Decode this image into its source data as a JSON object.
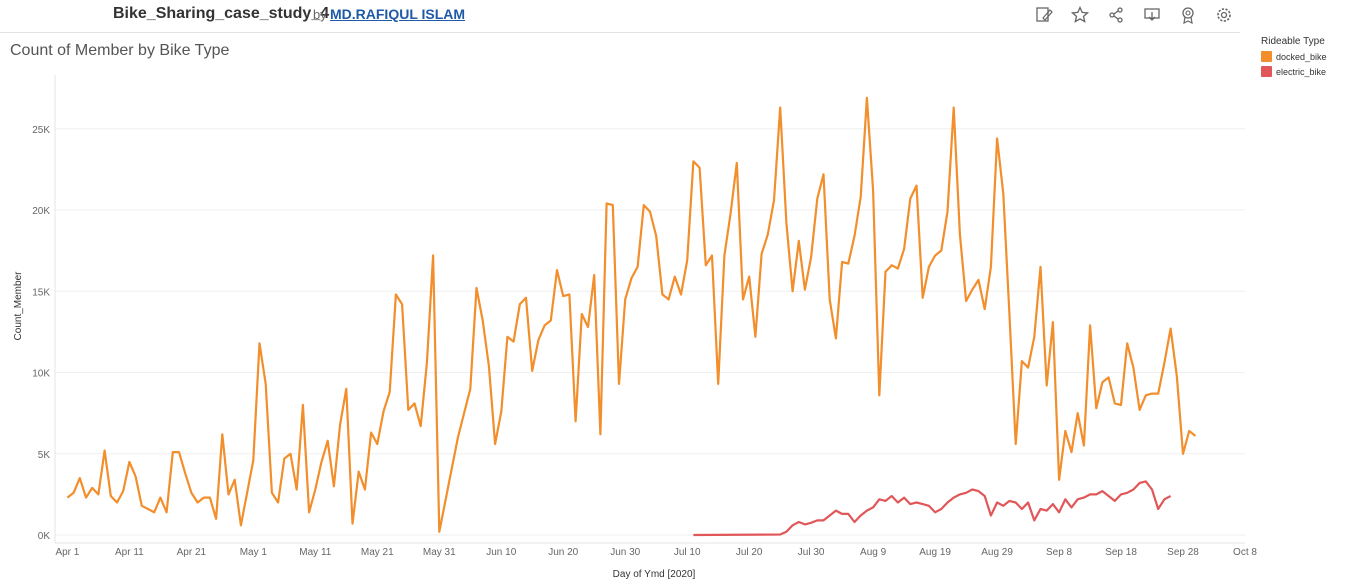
{
  "header": {
    "workbook_title": "Bike_Sharing_case_study_4",
    "by_label": "by",
    "author": "MD.RAFIQUL ISLAM",
    "toolbar_icons": [
      "edit-icon",
      "star-icon",
      "share-icon",
      "download-icon",
      "badge-icon",
      "settings-icon"
    ]
  },
  "legend": {
    "title": "Rideable Type",
    "items": [
      {
        "label": "docked_bike",
        "color": "#f28e2b"
      },
      {
        "label": "electric_bike",
        "color": "#e15759"
      }
    ]
  },
  "chart_data": {
    "type": "line",
    "title": "Count of Member by Bike Type",
    "xlabel": "Day of Ymd [2020]",
    "ylabel": "Count_Member",
    "x_start": "2020-04-01",
    "x_ticks": [
      "Apr 1",
      "Apr 11",
      "Apr 21",
      "May 1",
      "May 11",
      "May 21",
      "May 31",
      "Jun 10",
      "Jun 20",
      "Jun 30",
      "Jul 10",
      "Jul 20",
      "Jul 30",
      "Aug 9",
      "Aug 19",
      "Aug 29",
      "Sep 8",
      "Sep 18",
      "Sep 28",
      "Oct 8"
    ],
    "y_ticks": [
      "0K",
      "5K",
      "10K",
      "15K",
      "20K",
      "25K"
    ],
    "y_tick_values": [
      0,
      5000,
      10000,
      15000,
      20000,
      25000
    ],
    "ylim": [
      0,
      28000
    ],
    "xlim_days": [
      -2,
      190
    ],
    "grid": true,
    "legend_position": "top-right",
    "series": [
      {
        "name": "docked_bike",
        "color": "#f28e2b",
        "points": [
          [
            0,
            2300
          ],
          [
            1,
            2600
          ],
          [
            2,
            3500
          ],
          [
            3,
            2300
          ],
          [
            4,
            2900
          ],
          [
            5,
            2500
          ],
          [
            6,
            5200
          ],
          [
            7,
            2400
          ],
          [
            8,
            2000
          ],
          [
            9,
            2700
          ],
          [
            10,
            4500
          ],
          [
            11,
            3600
          ],
          [
            12,
            1800
          ],
          [
            13,
            1600
          ],
          [
            14,
            1400
          ],
          [
            15,
            2300
          ],
          [
            16,
            1400
          ],
          [
            17,
            5100
          ],
          [
            18,
            5100
          ],
          [
            19,
            3800
          ],
          [
            20,
            2600
          ],
          [
            21,
            2000
          ],
          [
            22,
            2300
          ],
          [
            23,
            2300
          ],
          [
            24,
            1000
          ],
          [
            25,
            6200
          ],
          [
            26,
            2500
          ],
          [
            27,
            3400
          ],
          [
            28,
            600
          ],
          [
            30,
            4600
          ],
          [
            31,
            11800
          ],
          [
            32,
            9300
          ],
          [
            33,
            2600
          ],
          [
            34,
            2000
          ],
          [
            35,
            4700
          ],
          [
            36,
            5000
          ],
          [
            37,
            2800
          ],
          [
            38,
            8000
          ],
          [
            39,
            1400
          ],
          [
            40,
            2800
          ],
          [
            41,
            4500
          ],
          [
            42,
            5800
          ],
          [
            43,
            3000
          ],
          [
            44,
            6800
          ],
          [
            45,
            9000
          ],
          [
            46,
            700
          ],
          [
            47,
            3900
          ],
          [
            48,
            2800
          ],
          [
            49,
            6300
          ],
          [
            50,
            5600
          ],
          [
            51,
            7600
          ],
          [
            52,
            8800
          ],
          [
            53,
            14800
          ],
          [
            54,
            14200
          ],
          [
            55,
            7700
          ],
          [
            56,
            8100
          ],
          [
            57,
            6700
          ],
          [
            58,
            10600
          ],
          [
            59,
            17200
          ],
          [
            60,
            200
          ],
          [
            63,
            6000
          ],
          [
            64,
            7500
          ],
          [
            65,
            9000
          ],
          [
            66,
            15200
          ],
          [
            67,
            13200
          ],
          [
            68,
            10400
          ],
          [
            69,
            5600
          ],
          [
            70,
            7600
          ],
          [
            71,
            12200
          ],
          [
            72,
            11900
          ],
          [
            73,
            14200
          ],
          [
            74,
            14600
          ],
          [
            75,
            10100
          ],
          [
            76,
            12000
          ],
          [
            77,
            12900
          ],
          [
            78,
            13200
          ],
          [
            79,
            16300
          ],
          [
            80,
            14700
          ],
          [
            81,
            14800
          ],
          [
            82,
            7000
          ],
          [
            83,
            13600
          ],
          [
            84,
            12800
          ],
          [
            85,
            16000
          ],
          [
            86,
            6200
          ],
          [
            87,
            20400
          ],
          [
            88,
            20300
          ],
          [
            89,
            9300
          ],
          [
            90,
            14500
          ],
          [
            91,
            15800
          ],
          [
            92,
            16500
          ],
          [
            93,
            20300
          ],
          [
            94,
            19900
          ],
          [
            95,
            18400
          ],
          [
            96,
            14800
          ],
          [
            97,
            14500
          ],
          [
            98,
            15900
          ],
          [
            99,
            14800
          ],
          [
            100,
            16900
          ],
          [
            101,
            23000
          ],
          [
            102,
            22600
          ],
          [
            103,
            16600
          ],
          [
            104,
            17200
          ],
          [
            105,
            9300
          ],
          [
            106,
            17200
          ],
          [
            107,
            19800
          ],
          [
            108,
            22900
          ],
          [
            109,
            14500
          ],
          [
            110,
            15900
          ],
          [
            111,
            12200
          ],
          [
            112,
            17300
          ],
          [
            113,
            18500
          ],
          [
            114,
            20600
          ],
          [
            115,
            26300
          ],
          [
            116,
            19200
          ],
          [
            117,
            15000
          ],
          [
            118,
            18100
          ],
          [
            119,
            15100
          ],
          [
            120,
            17100
          ],
          [
            121,
            20700
          ],
          [
            122,
            22200
          ],
          [
            123,
            14500
          ],
          [
            124,
            12100
          ],
          [
            125,
            16800
          ],
          [
            126,
            16700
          ],
          [
            127,
            18400
          ],
          [
            128,
            20800
          ],
          [
            129,
            26900
          ],
          [
            130,
            21200
          ],
          [
            131,
            8600
          ],
          [
            132,
            16200
          ],
          [
            133,
            16600
          ],
          [
            134,
            16400
          ],
          [
            135,
            17600
          ],
          [
            136,
            20700
          ],
          [
            137,
            21500
          ],
          [
            138,
            14600
          ],
          [
            139,
            16500
          ],
          [
            140,
            17200
          ],
          [
            141,
            17500
          ],
          [
            142,
            19900
          ],
          [
            143,
            26300
          ],
          [
            144,
            18500
          ],
          [
            145,
            14400
          ],
          [
            146,
            15100
          ],
          [
            147,
            15700
          ],
          [
            148,
            13900
          ],
          [
            149,
            16500
          ],
          [
            150,
            24400
          ],
          [
            151,
            21000
          ],
          [
            152,
            13500
          ],
          [
            153,
            5600
          ],
          [
            154,
            10700
          ],
          [
            155,
            10300
          ],
          [
            156,
            12200
          ],
          [
            157,
            16500
          ],
          [
            158,
            9200
          ],
          [
            159,
            13100
          ],
          [
            160,
            3400
          ],
          [
            161,
            6400
          ],
          [
            162,
            5100
          ],
          [
            163,
            7500
          ],
          [
            164,
            5500
          ],
          [
            165,
            12900
          ],
          [
            166,
            7800
          ],
          [
            167,
            9400
          ],
          [
            168,
            9700
          ],
          [
            169,
            8100
          ],
          [
            170,
            8000
          ],
          [
            171,
            11800
          ],
          [
            172,
            10300
          ],
          [
            173,
            7700
          ],
          [
            174,
            8600
          ],
          [
            175,
            8700
          ],
          [
            176,
            8700
          ],
          [
            177,
            10600
          ],
          [
            178,
            12700
          ],
          [
            179,
            9800
          ],
          [
            180,
            5000
          ],
          [
            181,
            6400
          ],
          [
            182,
            6100
          ]
        ]
      },
      {
        "name": "electric_bike",
        "color": "#e15759",
        "points": [
          [
            101,
            0
          ],
          [
            115,
            30
          ],
          [
            116,
            200
          ],
          [
            117,
            600
          ],
          [
            118,
            800
          ],
          [
            119,
            650
          ],
          [
            120,
            750
          ],
          [
            121,
            900
          ],
          [
            122,
            900
          ],
          [
            123,
            1200
          ],
          [
            124,
            1500
          ],
          [
            125,
            1300
          ],
          [
            126,
            1300
          ],
          [
            127,
            800
          ],
          [
            128,
            1200
          ],
          [
            129,
            1500
          ],
          [
            130,
            1700
          ],
          [
            131,
            2200
          ],
          [
            132,
            2100
          ],
          [
            133,
            2400
          ],
          [
            134,
            2000
          ],
          [
            135,
            2300
          ],
          [
            136,
            1900
          ],
          [
            137,
            2000
          ],
          [
            138,
            1900
          ],
          [
            139,
            1800
          ],
          [
            140,
            1400
          ],
          [
            141,
            1600
          ],
          [
            142,
            2000
          ],
          [
            143,
            2300
          ],
          [
            144,
            2500
          ],
          [
            145,
            2600
          ],
          [
            146,
            2800
          ],
          [
            147,
            2700
          ],
          [
            148,
            2400
          ],
          [
            149,
            1200
          ],
          [
            150,
            2000
          ],
          [
            151,
            1800
          ],
          [
            152,
            2100
          ],
          [
            153,
            2000
          ],
          [
            154,
            1600
          ],
          [
            155,
            2000
          ],
          [
            156,
            900
          ],
          [
            157,
            1600
          ],
          [
            158,
            1500
          ],
          [
            159,
            1900
          ],
          [
            160,
            1400
          ],
          [
            161,
            2200
          ],
          [
            162,
            1700
          ],
          [
            163,
            2200
          ],
          [
            164,
            2300
          ],
          [
            165,
            2500
          ],
          [
            166,
            2500
          ],
          [
            167,
            2700
          ],
          [
            168,
            2400
          ],
          [
            169,
            2100
          ],
          [
            170,
            2500
          ],
          [
            171,
            2600
          ],
          [
            172,
            2800
          ],
          [
            173,
            3200
          ],
          [
            174,
            3300
          ],
          [
            175,
            2800
          ],
          [
            176,
            1600
          ],
          [
            177,
            2200
          ],
          [
            178,
            2400
          ]
        ]
      }
    ]
  }
}
